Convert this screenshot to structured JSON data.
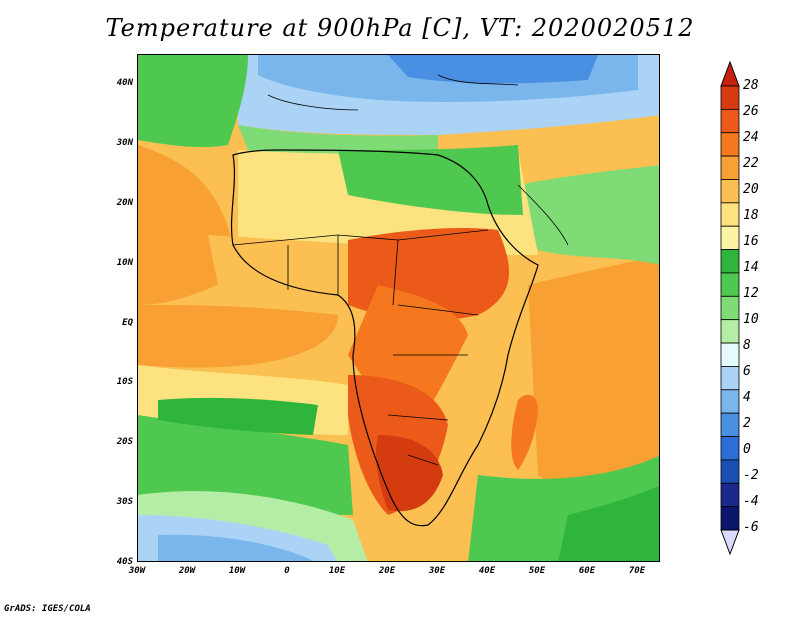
{
  "title": "Temperature at 900hPa [C], VT: 2020020512",
  "credit": "GrADS: IGES/COLA",
  "map": {
    "lat_labels": [
      "40N",
      "30N",
      "20N",
      "10N",
      "EQ",
      "10S",
      "20S",
      "30S",
      "40S"
    ],
    "lon_labels": [
      "30W",
      "20W",
      "10W",
      "0",
      "10E",
      "20E",
      "30E",
      "40E",
      "50E",
      "60E",
      "70E"
    ]
  },
  "colorbar": {
    "levels": [
      "28",
      "26",
      "24",
      "22",
      "20",
      "18",
      "16",
      "14",
      "12",
      "10",
      "8",
      "6",
      "4",
      "2",
      "0",
      "-2",
      "-4",
      "-6"
    ],
    "colors": [
      "#d43c10",
      "#ec5a1a",
      "#f5781e",
      "#f8a033",
      "#fbbf52",
      "#fde37f",
      "#fdf3a4",
      "#2fb43c",
      "#4fc84f",
      "#7fdb75",
      "#b4eea6",
      "#e5fbfb",
      "#aad3f6",
      "#7ab5ec",
      "#4a90e2",
      "#2c6ed6",
      "#1b4fb5",
      "#1a2a8a",
      "#0c166c"
    ],
    "max_color": "#c8200e",
    "min_color": "#dadcff"
  }
}
